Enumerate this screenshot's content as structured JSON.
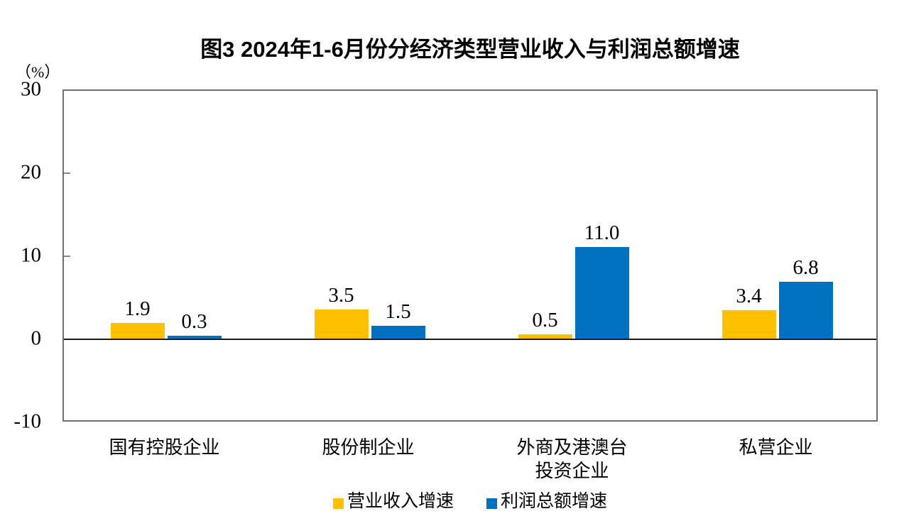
{
  "chart_data": {
    "type": "bar",
    "title": "图3  2024年1-6月份分经济类型营业收入与利润总额增速",
    "unit_label": "（%）",
    "categories": [
      "国有控股企业",
      "股份制企业",
      "外商及港澳台\n投资企业",
      "私营企业"
    ],
    "series": [
      {
        "name": "营业收入增速",
        "color": "#FFC000",
        "values": [
          1.9,
          3.5,
          0.5,
          3.4
        ],
        "labels": [
          "1.9",
          "3.5",
          "0.5",
          "3.4"
        ]
      },
      {
        "name": "利润总额增速",
        "color": "#0070C0",
        "values": [
          0.3,
          1.5,
          11.0,
          6.8
        ],
        "labels": [
          "0.3",
          "1.5",
          "11.0",
          "6.8"
        ]
      }
    ],
    "y_axis": {
      "min": -10,
      "max": 30,
      "ticks": [
        30,
        20,
        10,
        0,
        -10
      ],
      "tick_labels": [
        "30",
        "20",
        "10",
        "0",
        "-10"
      ]
    },
    "legend_position": "bottom",
    "grid": false
  },
  "colors": {
    "axis_border": "#6e6e6e",
    "zero_line": "#1a1a1a",
    "tick_mark": "#8a8a8a",
    "text": "#000000",
    "background": "#ffffff"
  }
}
